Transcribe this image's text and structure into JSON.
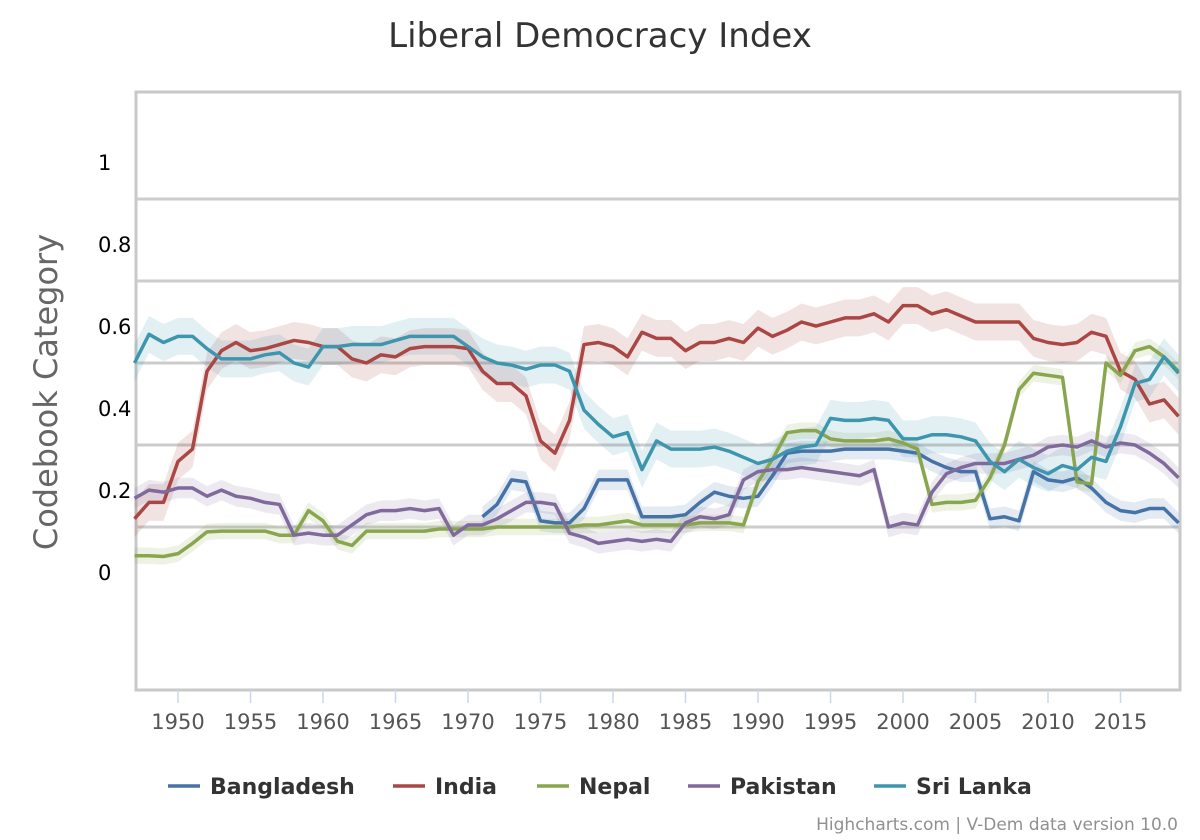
{
  "chart_data": {
    "type": "line",
    "title": "Liberal Democracy Index",
    "xlabel": "",
    "ylabel": "Codebook Category",
    "xlim": [
      1947,
      2019
    ],
    "ylim": [
      -0.25,
      1.2
    ],
    "x_ticks": [
      1950,
      1955,
      1960,
      1965,
      1970,
      1975,
      1980,
      1985,
      1990,
      1995,
      2000,
      2005,
      2010,
      2015
    ],
    "y_tick_labels": [
      {
        "value": 1,
        "label": "1"
      },
      {
        "value": 0.8,
        "label": "0.8"
      },
      {
        "value": 0.6,
        "label": "0.6"
      },
      {
        "value": 0.4,
        "label": "0.4"
      },
      {
        "value": 0.2,
        "label": "0.2"
      },
      {
        "value": 0,
        "label": "0"
      }
    ],
    "gridlines": [
      0.9,
      0.7,
      0.5,
      0.3,
      0.1
    ],
    "grid": true,
    "legend_position": "bottom",
    "credits": "Highcharts.com | V-Dem data version 10.0",
    "series": [
      {
        "name": "Bangladesh",
        "color": "#4572a7",
        "ci_halfwidth": 0.025,
        "start": 1971,
        "values": [
          0.125,
          0.155,
          0.215,
          0.21,
          0.115,
          0.11,
          0.11,
          0.145,
          0.215,
          0.215,
          0.215,
          0.125,
          0.125,
          0.125,
          0.13,
          0.16,
          0.185,
          0.175,
          0.17,
          0.175,
          0.225,
          0.28,
          0.285,
          0.285,
          0.285,
          0.29,
          0.29,
          0.29,
          0.29,
          0.285,
          0.28,
          0.26,
          0.245,
          0.235,
          0.235,
          0.12,
          0.125,
          0.115,
          0.235,
          0.215,
          0.21,
          0.22,
          0.195,
          0.16,
          0.14,
          0.135,
          0.145,
          0.145,
          0.11
        ]
      },
      {
        "name": "India",
        "color": "#aa4643",
        "ci_halfwidth": 0.045,
        "start": 1947,
        "values": [
          0.12,
          0.16,
          0.16,
          0.26,
          0.29,
          0.48,
          0.53,
          0.55,
          0.53,
          0.535,
          0.545,
          0.555,
          0.55,
          0.54,
          0.54,
          0.51,
          0.5,
          0.52,
          0.515,
          0.535,
          0.54,
          0.54,
          0.54,
          0.535,
          0.48,
          0.45,
          0.45,
          0.42,
          0.31,
          0.28,
          0.36,
          0.545,
          0.55,
          0.54,
          0.515,
          0.575,
          0.56,
          0.56,
          0.53,
          0.55,
          0.55,
          0.56,
          0.55,
          0.585,
          0.565,
          0.58,
          0.6,
          0.59,
          0.6,
          0.61,
          0.61,
          0.62,
          0.6,
          0.64,
          0.64,
          0.62,
          0.63,
          0.615,
          0.6,
          0.6,
          0.6,
          0.6,
          0.56,
          0.55,
          0.545,
          0.55,
          0.575,
          0.565,
          0.48,
          0.46,
          0.4,
          0.41,
          0.37
        ]
      },
      {
        "name": "Nepal",
        "color": "#89a54e",
        "ci_halfwidth": 0.02,
        "start": 1947,
        "values": [
          0.03,
          0.03,
          0.028,
          0.035,
          0.06,
          0.088,
          0.09,
          0.09,
          0.09,
          0.09,
          0.08,
          0.08,
          0.14,
          0.115,
          0.065,
          0.055,
          0.09,
          0.09,
          0.09,
          0.09,
          0.09,
          0.095,
          0.095,
          0.095,
          0.095,
          0.1,
          0.1,
          0.1,
          0.1,
          0.1,
          0.1,
          0.105,
          0.105,
          0.11,
          0.115,
          0.105,
          0.105,
          0.105,
          0.105,
          0.11,
          0.11,
          0.11,
          0.105,
          0.21,
          0.265,
          0.33,
          0.335,
          0.335,
          0.315,
          0.31,
          0.31,
          0.31,
          0.315,
          0.305,
          0.29,
          0.155,
          0.16,
          0.16,
          0.165,
          0.22,
          0.3,
          0.435,
          0.475,
          0.47,
          0.465,
          0.21,
          0.205,
          0.5,
          0.47,
          0.53,
          0.54,
          0.515,
          0.48
        ]
      },
      {
        "name": "Pakistan",
        "color": "#80699b",
        "ci_halfwidth": 0.025,
        "start": 1947,
        "values": [
          0.17,
          0.19,
          0.185,
          0.195,
          0.195,
          0.175,
          0.19,
          0.175,
          0.17,
          0.16,
          0.155,
          0.08,
          0.085,
          0.08,
          0.08,
          0.105,
          0.13,
          0.14,
          0.14,
          0.145,
          0.14,
          0.145,
          0.08,
          0.105,
          0.105,
          0.12,
          0.14,
          0.16,
          0.16,
          0.155,
          0.085,
          0.075,
          0.06,
          0.065,
          0.07,
          0.065,
          0.07,
          0.065,
          0.11,
          0.125,
          0.12,
          0.13,
          0.215,
          0.235,
          0.24,
          0.24,
          0.245,
          0.24,
          0.235,
          0.23,
          0.225,
          0.24,
          0.1,
          0.11,
          0.105,
          0.185,
          0.23,
          0.245,
          0.255,
          0.255,
          0.255,
          0.265,
          0.275,
          0.295,
          0.3,
          0.295,
          0.31,
          0.295,
          0.305,
          0.3,
          0.28,
          0.255,
          0.22
        ]
      },
      {
        "name": "Sri Lanka",
        "color": "#3d96ae",
        "ci_halfwidth": 0.045,
        "start": 1947,
        "values": [
          0.5,
          0.57,
          0.55,
          0.565,
          0.565,
          0.535,
          0.51,
          0.51,
          0.51,
          0.52,
          0.525,
          0.5,
          0.49,
          0.54,
          0.54,
          0.545,
          0.545,
          0.545,
          0.555,
          0.565,
          0.565,
          0.565,
          0.565,
          0.54,
          0.515,
          0.5,
          0.495,
          0.485,
          0.495,
          0.495,
          0.48,
          0.385,
          0.35,
          0.32,
          0.33,
          0.24,
          0.31,
          0.29,
          0.29,
          0.29,
          0.295,
          0.285,
          0.27,
          0.255,
          0.265,
          0.285,
          0.295,
          0.3,
          0.365,
          0.36,
          0.36,
          0.365,
          0.36,
          0.315,
          0.315,
          0.325,
          0.325,
          0.32,
          0.31,
          0.26,
          0.235,
          0.265,
          0.245,
          0.23,
          0.25,
          0.24,
          0.27,
          0.26,
          0.345,
          0.45,
          0.46,
          0.515,
          0.475
        ]
      }
    ]
  }
}
